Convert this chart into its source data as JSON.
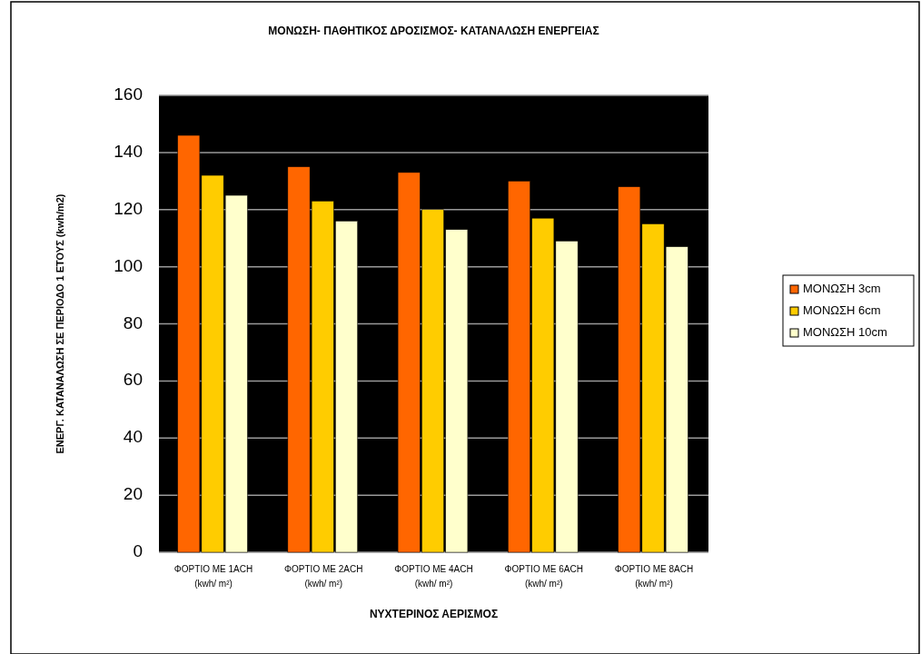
{
  "chart_data": {
    "type": "bar",
    "title": "ΜΟΝΩΣΗ- ΠΑΘΗΤΙΚΟΣ ΔΡΟΣΙΣΜΟΣ- ΚΑΤΑΝΑΛΩΣΗ ΕΝΕΡΓΕΙΑΣ",
    "xlabel": "ΝΥΧΤΕΡΙΝΟΣ ΑΕΡΙΣΜΟΣ",
    "ylabel": "ΕΝΕΡΓ. ΚΑΤΑΝΑΛΩΣΗ ΣΕ ΠΕΡΙΟΔΟ 1 ΕΤΟΥΣ (kwh/m2)",
    "categories": [
      "ΦΟΡΤΙΟ ΜΕ 1ACH\n(kwh/ m²)",
      "ΦΟΡΤΙΟ ΜΕ 2ACH\n(kwh/ m²)",
      "ΦΟΡΤΙΟ ΜΕ 4ACH\n(kwh/ m²)",
      "ΦΟΡΤΙΟ ΜΕ 6ACH\n(kwh/ m²)",
      "ΦΟΡΤΙΟ ΜΕ 8ACH\n(kwh/ m²)"
    ],
    "series": [
      {
        "name": "ΜΟΝΩΣΗ 3cm",
        "color": "#ff6600",
        "values": [
          146,
          135,
          133,
          130,
          128
        ]
      },
      {
        "name": "ΜΟΝΩΣΗ 6cm",
        "color": "#ffcc00",
        "values": [
          132,
          123,
          120,
          117,
          115
        ]
      },
      {
        "name": "ΜΟΝΩΣΗ 10cm",
        "color": "#ffffcc",
        "values": [
          125,
          116,
          113,
          109,
          107
        ]
      }
    ],
    "ylim": [
      0,
      160
    ],
    "yticks": [
      0,
      20,
      40,
      60,
      80,
      100,
      120,
      140,
      160
    ],
    "grid": "y",
    "legend": "right"
  }
}
